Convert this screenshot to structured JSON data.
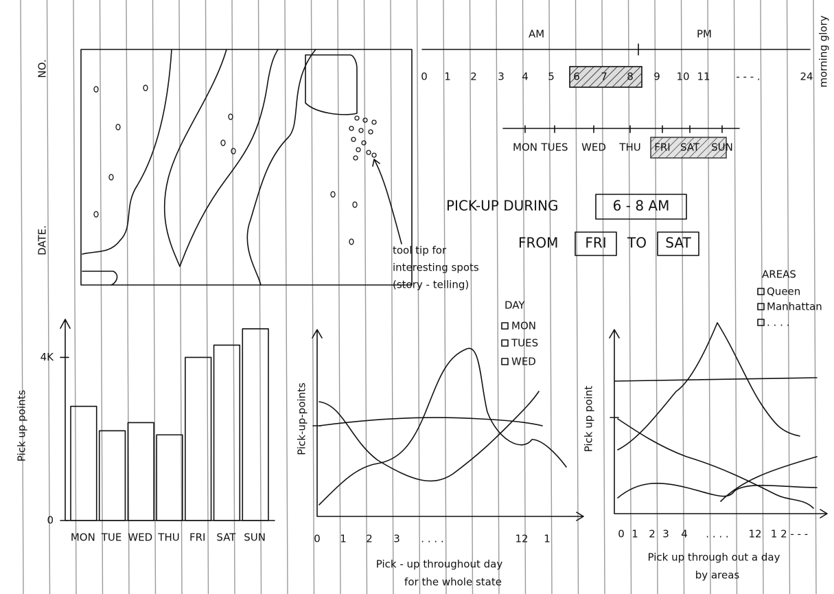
{
  "brand": "morning glory",
  "map": {
    "y_labels": [
      "NO.",
      "DATE."
    ],
    "tooltip_note": [
      "tool tip for",
      "interesting spots",
      "(story - telling)"
    ]
  },
  "time_filter": {
    "am": "AM",
    "pm": "PM",
    "hours": [
      "0",
      "1",
      "2",
      "3",
      "4",
      "5",
      "6",
      "7",
      "8",
      "9",
      "10",
      "11",
      "- - - .",
      "24"
    ],
    "days": [
      "MON",
      "TUES",
      "WED",
      "THU",
      "FRI",
      "SAT",
      "SUN"
    ]
  },
  "summary": {
    "line1": [
      "PICK-UP DURING",
      "6 - 8 AM"
    ],
    "line2": [
      "FROM",
      "FRI",
      "TO",
      "SAT"
    ]
  },
  "bar_chart": {
    "type": "bar",
    "y_label": "Pick up points",
    "categories": [
      "MON",
      "TUE",
      "WED",
      "THU",
      "FRI",
      "SAT",
      "SUN"
    ],
    "values": [
      2800,
      2200,
      2400,
      2100,
      4000,
      4300,
      4700
    ],
    "ylim": [
      0,
      5000
    ],
    "yticks": [
      0,
      {
        "value": 4000,
        "label": "4K"
      }
    ]
  },
  "line_chart_day": {
    "y_label": "Pick-up-points",
    "x_ticks": [
      "0",
      "1",
      "2",
      "3",
      ". . . .",
      "12",
      "1"
    ],
    "x_title": [
      "Pick - up throughout day",
      "for the whole state"
    ],
    "legend_title": "DAY",
    "legend": [
      "MON",
      "TUES",
      "WED"
    ]
  },
  "line_chart_areas": {
    "y_label": "Pick up point",
    "x_ticks": [
      "0",
      "1",
      "2",
      "3",
      "4",
      ". . . .",
      "12",
      "1 2 - - -"
    ],
    "x_title": [
      "Pick up through out a day",
      "by areas"
    ],
    "legend_title": "AREAS",
    "legend": [
      "Queen",
      "Manhattan",
      ". . . ."
    ]
  }
}
